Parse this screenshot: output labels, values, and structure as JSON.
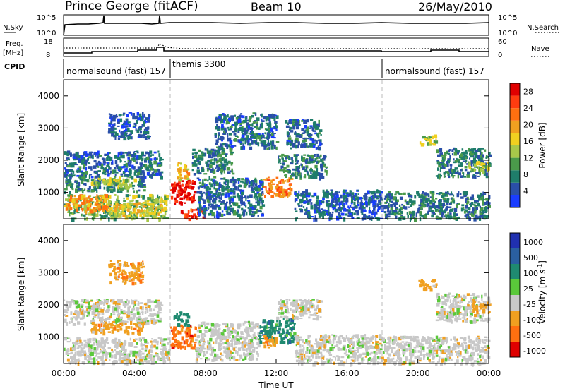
{
  "header": {
    "station": "Prince George (fitACF)",
    "beam": "Beam 10",
    "date": "26/May/2010"
  },
  "chart_data": [
    {
      "name": "noise-panel",
      "type": "line",
      "ylabel": "N.Sky",
      "ylabel_right": "N.Search",
      "yticks_left": [
        "10^5",
        "10^0"
      ],
      "yticks_right": [
        "10^5",
        "10^0"
      ]
    },
    {
      "name": "frequency-panel",
      "type": "line",
      "ylabel": "Freq.\n[MHz]",
      "ylabel_right": "Nave",
      "yticks_left": [
        "18",
        "8"
      ],
      "yticks_right": [
        "60",
        "0"
      ]
    },
    {
      "name": "cpid-panel",
      "type": "table",
      "label": "CPID",
      "segments": [
        {
          "start_h": 0.0,
          "end_h": 6.0,
          "text": "normalsound (fast) 157"
        },
        {
          "start_h": 6.0,
          "end_h": 18.0,
          "text": "themis 3300"
        },
        {
          "start_h": 18.0,
          "end_h": 24.0,
          "text": "normalsound (fast) 157"
        }
      ]
    },
    {
      "name": "power-panel",
      "type": "heatmap",
      "ylabel": "Slant Range [km]",
      "ylim": [
        180,
        4500
      ],
      "yticks": [
        1000,
        2000,
        3000,
        4000
      ],
      "colorbar": {
        "label": "Power [dB]",
        "range": [
          0,
          30
        ],
        "ticks": [
          "28",
          "24",
          "20",
          "16",
          "12",
          "8",
          "4"
        ],
        "colors": [
          "#1a3dff",
          "#2a4fa8",
          "#1f7d6a",
          "#4a9a4a",
          "#a8c84a",
          "#f0d020",
          "#f0a020",
          "#ff7010",
          "#ff3c10",
          "#e00000"
        ]
      },
      "regions": [
        {
          "t0": 0.0,
          "t1": 5.8,
          "r0": 200,
          "r1": 950,
          "value": 12
        },
        {
          "t0": 0.0,
          "t1": 2.5,
          "r0": 450,
          "r1": 950,
          "value": 20
        },
        {
          "t0": 2.5,
          "t1": 5.5,
          "r0": 300,
          "r1": 700,
          "value": 16
        },
        {
          "t0": 0.0,
          "t1": 4.5,
          "r0": 1050,
          "r1": 1450,
          "value": 8
        },
        {
          "t0": 1.5,
          "t1": 4.0,
          "r0": 1200,
          "r1": 1500,
          "value": 14
        },
        {
          "t0": 0.0,
          "t1": 5.5,
          "r0": 1500,
          "r1": 2300,
          "value": 6
        },
        {
          "t0": 2.5,
          "t1": 4.8,
          "r0": 2700,
          "r1": 3500,
          "value": 5
        },
        {
          "t0": 6.0,
          "t1": 7.4,
          "r0": 650,
          "r1": 1400,
          "value": 28
        },
        {
          "t0": 6.6,
          "t1": 8.0,
          "r0": 200,
          "r1": 500,
          "value": 26
        },
        {
          "t0": 6.4,
          "t1": 7.0,
          "r0": 1400,
          "r1": 2000,
          "value": 18
        },
        {
          "t0": 7.5,
          "t1": 11.2,
          "r0": 300,
          "r1": 1500,
          "value": 6
        },
        {
          "t0": 7.2,
          "t1": 9.5,
          "r0": 1600,
          "r1": 2400,
          "value": 7
        },
        {
          "t0": 8.5,
          "t1": 12.0,
          "r0": 2400,
          "r1": 3500,
          "value": 6
        },
        {
          "t0": 11.2,
          "t1": 12.8,
          "r0": 900,
          "r1": 1500,
          "value": 22
        },
        {
          "t0": 12.0,
          "t1": 14.8,
          "r0": 1500,
          "r1": 2200,
          "value": 8
        },
        {
          "t0": 12.5,
          "t1": 14.5,
          "r0": 2400,
          "r1": 3300,
          "value": 6
        },
        {
          "t0": 13.0,
          "t1": 18.0,
          "r0": 200,
          "r1": 1100,
          "value": 5
        },
        {
          "t0": 18.0,
          "t1": 24.0,
          "r0": 200,
          "r1": 1050,
          "value": 7
        },
        {
          "t0": 20.0,
          "t1": 21.0,
          "r0": 2500,
          "r1": 2800,
          "value": 14
        },
        {
          "t0": 21.0,
          "t1": 24.0,
          "r0": 1500,
          "r1": 2400,
          "value": 7
        },
        {
          "t0": 22.8,
          "t1": 24.0,
          "r0": 1700,
          "r1": 2000,
          "value": 14
        }
      ]
    },
    {
      "name": "velocity-panel",
      "type": "heatmap",
      "ylabel": "Slant Range [km]",
      "xlabel": "Time UT",
      "ylim": [
        180,
        4500
      ],
      "yticks": [
        1000,
        2000,
        3000,
        4000
      ],
      "xticks": [
        "00:00",
        "04:00",
        "08:00",
        "12:00",
        "16:00",
        "20:00",
        "00:00"
      ],
      "colorbar": {
        "label": "Velocity [m s^-1]",
        "ticks": [
          "1000",
          "500",
          "100",
          "25",
          "-25",
          "-100",
          "-500",
          "-1000"
        ],
        "colors": [
          "#2030b0",
          "#2a5fa0",
          "#1f8a70",
          "#5ac83a",
          "#c8c8c8",
          "#f0a020",
          "#ff7010",
          "#e00000"
        ]
      },
      "regions": [
        {
          "t0": 0.0,
          "t1": 6.0,
          "r0": 200,
          "r1": 1000,
          "value": 0
        },
        {
          "t0": 0.0,
          "t1": 5.5,
          "r0": 1450,
          "r1": 2200,
          "value": 0
        },
        {
          "t0": 1.5,
          "t1": 4.5,
          "r0": 1150,
          "r1": 1500,
          "value": -100
        },
        {
          "t0": 2.5,
          "t1": 4.5,
          "r0": 2700,
          "r1": 3400,
          "value": -100
        },
        {
          "t0": 6.0,
          "t1": 7.4,
          "r0": 650,
          "r1": 1400,
          "value": -500
        },
        {
          "t0": 6.2,
          "t1": 7.0,
          "r0": 1400,
          "r1": 1800,
          "value": 100
        },
        {
          "t0": 7.4,
          "t1": 11.0,
          "r0": 300,
          "r1": 1500,
          "value": 0
        },
        {
          "t0": 11.0,
          "t1": 13.0,
          "r0": 850,
          "r1": 1600,
          "value": 100
        },
        {
          "t0": 11.2,
          "t1": 12.0,
          "r0": 700,
          "r1": 1100,
          "value": -100
        },
        {
          "t0": 12.0,
          "t1": 14.5,
          "r0": 1600,
          "r1": 2200,
          "value": 0
        },
        {
          "t0": 13.0,
          "t1": 18.0,
          "r0": 200,
          "r1": 1100,
          "value": 0
        },
        {
          "t0": 18.0,
          "t1": 24.0,
          "r0": 200,
          "r1": 1050,
          "value": 0
        },
        {
          "t0": 20.0,
          "t1": 21.0,
          "r0": 2500,
          "r1": 2800,
          "value": -100
        },
        {
          "t0": 21.0,
          "t1": 24.0,
          "r0": 1500,
          "r1": 2400,
          "value": 0
        },
        {
          "t0": 23.0,
          "t1": 24.0,
          "r0": 1800,
          "r1": 2100,
          "value": -100
        }
      ]
    }
  ]
}
